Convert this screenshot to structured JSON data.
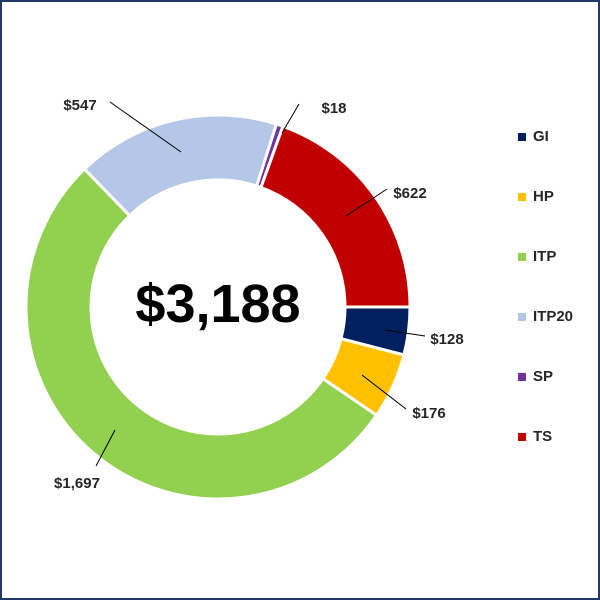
{
  "chart_data": {
    "type": "pie",
    "variant": "donut",
    "center_label": "$3,188",
    "categories": [
      "GI",
      "HP",
      "ITP",
      "ITP20",
      "SP",
      "TS"
    ],
    "values": [
      128,
      176,
      1697,
      547,
      18,
      622
    ],
    "value_labels": [
      "$128",
      "$176",
      "$1,697",
      "$547",
      "$18",
      "$622"
    ],
    "colors": [
      "#002060",
      "#ffc000",
      "#92d050",
      "#b4c7e7",
      "#7030a0",
      "#c00000"
    ],
    "legend_position": "right"
  }
}
